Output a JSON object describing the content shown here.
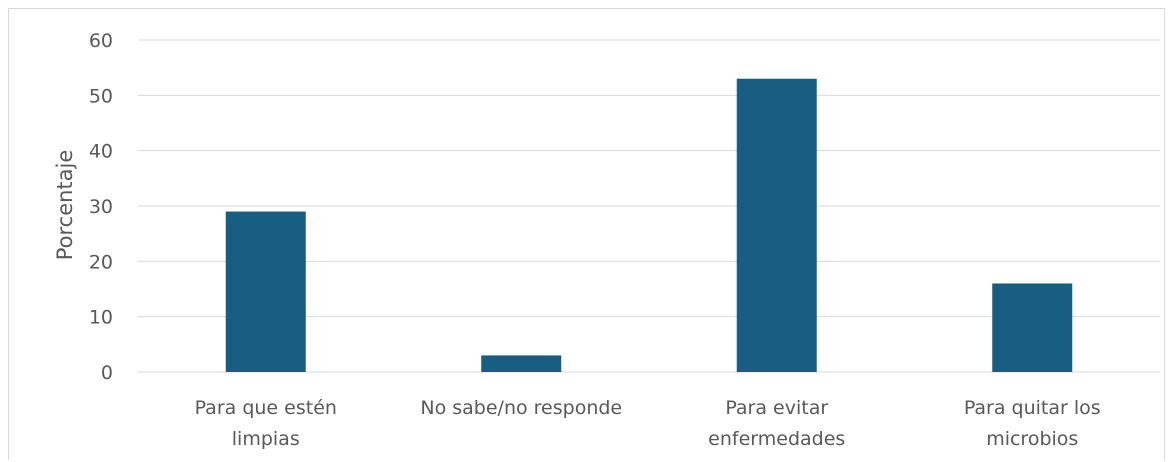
{
  "chart_data": {
    "type": "bar",
    "title": "",
    "xlabel": "",
    "ylabel": "Porcentaje",
    "ylim": [
      0,
      60
    ],
    "yticks": [
      0,
      10,
      20,
      30,
      40,
      50,
      60
    ],
    "grid": true,
    "legend": "none",
    "bar_color": "#175e82",
    "categories": [
      [
        "Para que estén",
        "limpias"
      ],
      [
        "No sabe/no responde"
      ],
      [
        "Para evitar",
        "enfermedades"
      ],
      [
        "Para quitar los",
        "microbios"
      ]
    ],
    "values": [
      29,
      3,
      53,
      16
    ]
  }
}
